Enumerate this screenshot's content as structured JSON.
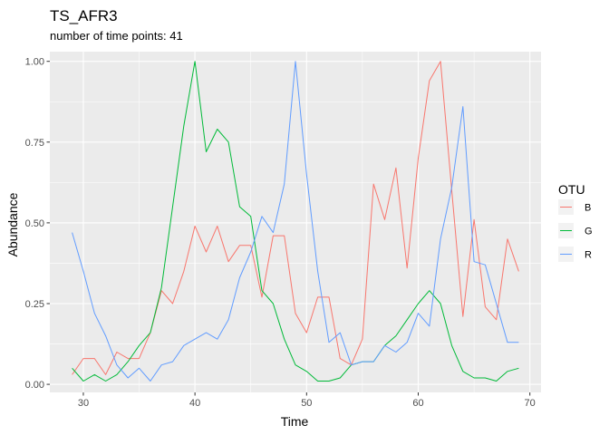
{
  "chart_data": {
    "type": "line",
    "title": "TS_AFR3",
    "subtitle": "number of time points: 41",
    "xlabel": "Time",
    "ylabel": "Abundance",
    "xlim": [
      27,
      71
    ],
    "ylim": [
      -0.025,
      1.03
    ],
    "x_ticks": [
      30,
      40,
      50,
      60,
      70
    ],
    "y_ticks": [
      0.0,
      0.25,
      0.5,
      0.75,
      1.0
    ],
    "x_tick_labels": [
      "30",
      "40",
      "50",
      "60",
      "70"
    ],
    "y_tick_labels": [
      "0.00",
      "0.25",
      "0.50",
      "0.75",
      "1.00"
    ],
    "grid": true,
    "legend": {
      "title": "OTU",
      "position": "right"
    },
    "x": [
      29,
      30,
      31,
      32,
      33,
      34,
      35,
      36,
      37,
      38,
      39,
      40,
      41,
      42,
      43,
      44,
      45,
      46,
      47,
      48,
      49,
      50,
      51,
      52,
      53,
      54,
      55,
      56,
      57,
      58,
      59,
      60,
      61,
      62,
      63,
      64,
      65,
      66,
      67,
      68,
      69
    ],
    "series": [
      {
        "name": "B",
        "color": "#F8766D",
        "values": [
          0.03,
          0.08,
          0.08,
          0.03,
          0.1,
          0.08,
          0.08,
          0.16,
          0.29,
          0.25,
          0.35,
          0.49,
          0.41,
          0.49,
          0.38,
          0.43,
          0.43,
          0.27,
          0.46,
          0.46,
          0.22,
          0.16,
          0.27,
          0.27,
          0.08,
          0.06,
          0.14,
          0.62,
          0.51,
          0.67,
          0.36,
          0.7,
          0.94,
          1.0,
          0.6,
          0.21,
          0.51,
          0.24,
          0.2,
          0.45,
          0.35
        ]
      },
      {
        "name": "G",
        "color": "#00BA38",
        "values": [
          0.05,
          0.01,
          0.03,
          0.01,
          0.03,
          0.07,
          0.12,
          0.16,
          0.3,
          0.55,
          0.8,
          1.0,
          0.72,
          0.79,
          0.75,
          0.55,
          0.52,
          0.29,
          0.25,
          0.14,
          0.06,
          0.04,
          0.01,
          0.01,
          0.02,
          0.06,
          0.07,
          0.07,
          0.12,
          0.15,
          0.2,
          0.25,
          0.29,
          0.25,
          0.12,
          0.04,
          0.02,
          0.02,
          0.01,
          0.04,
          0.05
        ]
      },
      {
        "name": "R",
        "color": "#619CFF",
        "values": [
          0.47,
          0.35,
          0.22,
          0.15,
          0.06,
          0.02,
          0.05,
          0.01,
          0.06,
          0.07,
          0.12,
          0.14,
          0.16,
          0.14,
          0.2,
          0.33,
          0.41,
          0.52,
          0.47,
          0.62,
          1.0,
          0.65,
          0.35,
          0.13,
          0.16,
          0.06,
          0.07,
          0.07,
          0.12,
          0.1,
          0.13,
          0.22,
          0.18,
          0.45,
          0.61,
          0.86,
          0.38,
          0.37,
          0.25,
          0.13,
          0.13
        ]
      }
    ]
  }
}
